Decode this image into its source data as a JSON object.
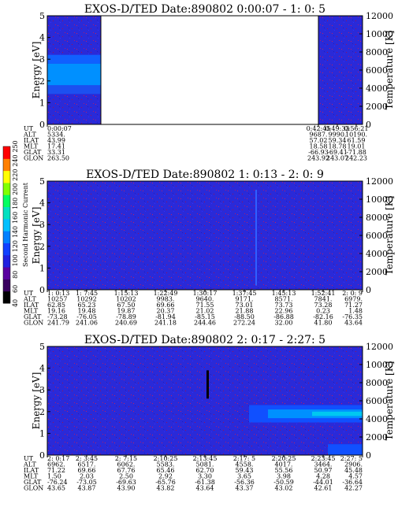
{
  "colorbar": {
    "label": "Second Harmonic Current",
    "ticks": [
      "40",
      "60",
      "80",
      "100",
      "120",
      "140",
      "160",
      "180",
      "200",
      "220",
      "240",
      "250"
    ],
    "colors": [
      "#000000",
      "#3a0060",
      "#5a00a0",
      "#2020e0",
      "#1040ff",
      "#0080ff",
      "#00c0ff",
      "#00e0c0",
      "#00ff60",
      "#80ff00",
      "#ffff00",
      "#ff8000",
      "#ff0000"
    ]
  },
  "chart_data": [
    {
      "type": "heatmap",
      "title": "EXOS-D/TED   Date:890802  0:00:07 - 1: 0: 5",
      "ylabel": "Energy [eV]",
      "y2label": "Temperature [K]",
      "ylim": [
        0,
        5
      ],
      "y2lim": [
        0,
        12000
      ],
      "yticks": [
        "0",
        "1",
        "2",
        "3",
        "4",
        "5"
      ],
      "y2ticks": [
        "0",
        "2000",
        "4000",
        "6000",
        "8000",
        "10000",
        "12000"
      ],
      "data_gap": {
        "from_fraction": 0.17,
        "to_fraction": 0.86
      },
      "row_labels": [
        "UT",
        "ALT",
        "ILAT",
        "MLT",
        "GLAT",
        "GLON"
      ],
      "columns": [
        [
          "0:00:07",
          "5334.",
          "43.99",
          "17.41",
          "33.31",
          "263.50"
        ],
        [
          "0:42:45",
          "9687.",
          "57.02",
          "18.58",
          "-66.93",
          "243.92"
        ],
        [
          "0:49:33",
          "9990.",
          "59.34",
          "18.78",
          "-69.41",
          "243.07"
        ],
        [
          "0:56:21",
          "10190.",
          "61.59",
          "19.01",
          "-71.88",
          "242.23"
        ]
      ],
      "column_positions": [
        0.0,
        0.86,
        0.92,
        0.98
      ]
    },
    {
      "type": "heatmap",
      "title": "EXOS-D/TED   Date:890802  1: 0:13 - 2: 0: 9",
      "ylabel": "Energy [eV]",
      "y2label": "Temperature [K]",
      "ylim": [
        0,
        5
      ],
      "y2lim": [
        0,
        12000
      ],
      "yticks": [
        "0",
        "1",
        "2",
        "3",
        "4",
        "5"
      ],
      "y2ticks": [
        "0",
        "2000",
        "4000",
        "6000",
        "8000",
        "10000",
        "12000"
      ],
      "row_labels": [
        "UT",
        "ALT",
        "ILAT",
        "MLT",
        "GLAT",
        "GLON"
      ],
      "columns": [
        [
          "1: 0:13",
          "10257",
          "62.85",
          "19.16",
          "-73.28",
          "241.79"
        ],
        [
          "1: 7:45",
          "10292",
          "65.23",
          "19.48",
          "-76.05",
          "241.06"
        ],
        [
          "1:15:13",
          "10202",
          "67.50",
          "19.87",
          "-78.89",
          "240.69"
        ],
        [
          "1:22:49",
          "9983.",
          "69.66",
          "20.37",
          "-81.94",
          "241.18"
        ],
        [
          "1:30:17",
          "9640.",
          "71.55",
          "21.02",
          "-85.15",
          "244.46"
        ],
        [
          "1:37:45",
          "9171.",
          "73.01",
          "21.88",
          "-88.50",
          "272.24"
        ],
        [
          "1:45:13",
          "8571.",
          "73.73",
          "22.96",
          "-86.88",
          "32.00"
        ],
        [
          "1:52:41",
          "7841.",
          "73.28",
          "0.23",
          "-82.16",
          "41.80"
        ],
        [
          "2: 0: 9",
          "6979.",
          "71.27",
          "1.48",
          "-76.35",
          "43.64"
        ]
      ]
    },
    {
      "type": "heatmap",
      "title": "EXOS-D/TED   Date:890802  2: 0:17 - 2:27: 5",
      "ylabel": "Energy [eV]",
      "y2label": "Temperature [K]",
      "ylim": [
        0,
        5
      ],
      "y2lim": [
        0,
        12000
      ],
      "yticks": [
        "0",
        "1",
        "2",
        "3",
        "4",
        "5"
      ],
      "y2ticks": [
        "0",
        "2000",
        "4000",
        "6000",
        "8000",
        "10000",
        "12000"
      ],
      "row_labels": [
        "UT",
        "ALT",
        "ILAT",
        "MLT",
        "GLAT",
        "GLON"
      ],
      "columns": [
        [
          "2: 0:17",
          "6962.",
          "71.22",
          "1.50",
          "-76.24",
          "43.65"
        ],
        [
          "2: 3:45",
          "6517.",
          "69.66",
          "2.03",
          "-73.05",
          "43.87"
        ],
        [
          "2: 7:15",
          "6062.",
          "67.76",
          "2.50",
          "-69.63",
          "43.90"
        ],
        [
          "2:10:25",
          "5583.",
          "65.46",
          "2.92",
          "-65.76",
          "43.82"
        ],
        [
          "2:13:45",
          "5081.",
          "62.70",
          "3.30",
          "-61.38",
          "43.64"
        ],
        [
          "2:17: 5",
          "4558.",
          "59.43",
          "3.65",
          "-56.36",
          "43.37"
        ],
        [
          "2:20:25",
          "4017.",
          "55.56",
          "3.98",
          "-50.59",
          "43.02"
        ],
        [
          "2:23:45",
          "3464.",
          "50.97",
          "4.28",
          "-44.01",
          "42.61"
        ],
        [
          "2:27: 5",
          "2906.",
          "45.48",
          "4.57",
          "-36.64",
          "42.27"
        ]
      ]
    }
  ]
}
